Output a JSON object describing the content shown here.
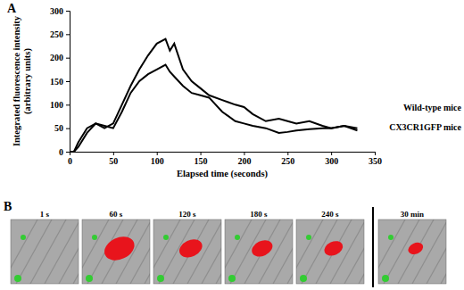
{
  "chart_data": {
    "type": "line",
    "title": "A",
    "x_label": "Elapsed time (seconds)",
    "y_label": "Integrated fluorescence intensity (arbitrary units)",
    "x": [
      0,
      5,
      10,
      20,
      30,
      40,
      50,
      60,
      70,
      80,
      90,
      100,
      110,
      115,
      120,
      130,
      140,
      150,
      160,
      175,
      190,
      200,
      210,
      225,
      240,
      250,
      260,
      275,
      290,
      300,
      315,
      330
    ],
    "series": [
      {
        "name": "Wild-type mice",
        "color": "#000000",
        "values": [
          0,
          0,
          20,
          50,
          60,
          50,
          60,
          100,
          140,
          175,
          205,
          230,
          240,
          215,
          230,
          175,
          150,
          135,
          120,
          110,
          100,
          95,
          80,
          65,
          70,
          65,
          60,
          65,
          55,
          50,
          55,
          45
        ]
      },
      {
        "name": "CX3CR1GFP mice",
        "color": "#000000",
        "values": [
          0,
          0,
          10,
          40,
          60,
          55,
          50,
          85,
          125,
          150,
          165,
          175,
          185,
          170,
          160,
          140,
          125,
          120,
          115,
          85,
          65,
          60,
          55,
          50,
          40,
          42,
          45,
          48,
          50,
          50,
          55,
          50
        ]
      }
    ],
    "xlim": [
      0,
      350
    ],
    "xticks": [
      0,
      50,
      100,
      150,
      200,
      250,
      300,
      350
    ],
    "ylim": [
      0,
      300
    ],
    "yticks": [
      0,
      50,
      100,
      150,
      200,
      250,
      300
    ],
    "grid": false
  },
  "panel_b": {
    "title": "B",
    "frames": [
      "1 s",
      "60 s",
      "120 s",
      "180 s",
      "240 s",
      "30 min"
    ]
  }
}
